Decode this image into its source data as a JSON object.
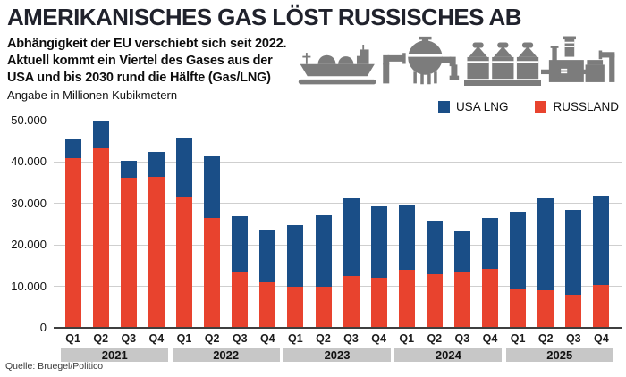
{
  "header": {
    "title": "AMERIKANISCHES GAS LÖST RUSSISCHES AB",
    "subtitle_lines": [
      "Abhängigkeit der EU verschiebt sich seit 2022.",
      "Aktuell kommt ein Viertel des Gases aus der",
      "USA und bis 2030 rund die Hälfte (Gas/LNG)"
    ],
    "unit_note": "Angabe in Millionen Kubikmetern",
    "icons": [
      "lng-tanker-ship",
      "spherical-gas-tank",
      "storage-tanks",
      "gas-plant"
    ]
  },
  "legend": [
    {
      "label": "USA LNG",
      "color": "#1a4e87"
    },
    {
      "label": "RUSSLAND",
      "color": "#e8432e"
    }
  ],
  "source": "Quelle: Bruegel/Politico",
  "colors": {
    "background": "#ffffff",
    "title": "#20222c",
    "usa_blue": "#1a4e87",
    "russia_red": "#e8432e",
    "grid": "#cfcfcf",
    "axis": "#3f3f3f",
    "year_band_bg": "#c7c7c7",
    "icon_gray": "#7c7c7c"
  },
  "chart_data": {
    "type": "bar",
    "stacked": true,
    "title": "AMERIKANISCHES GAS LÖST RUSSISCHES AB",
    "ylabel": "Angabe in Millionen Kubikmetern",
    "xlabel": "",
    "unit": "Millionen Kubikmeter",
    "grid": true,
    "legend_position": "top-right",
    "ylim": [
      0,
      50000
    ],
    "ytick_values": [
      0,
      10000,
      20000,
      30000,
      40000,
      50000
    ],
    "ytick_labels": [
      "0",
      "10.000",
      "20.000",
      "30.000",
      "40.000",
      "50.000"
    ],
    "years": [
      "2021",
      "2022",
      "2023",
      "2024",
      "2025"
    ],
    "categories": [
      "Q1",
      "Q2",
      "Q3",
      "Q4",
      "Q1",
      "Q2",
      "Q3",
      "Q4",
      "Q1",
      "Q2",
      "Q3",
      "Q4",
      "Q1",
      "Q2",
      "Q3",
      "Q4",
      "Q1",
      "Q2",
      "Q3",
      "Q4"
    ],
    "series": [
      {
        "name": "RUSSLAND",
        "color": "#e8432e",
        "values": [
          41000,
          43300,
          36200,
          36400,
          31600,
          26600,
          13600,
          11000,
          10000,
          10000,
          12400,
          12000,
          14000,
          13000,
          13500,
          14200,
          9500,
          9000,
          8000,
          10300
        ]
      },
      {
        "name": "USA LNG",
        "color": "#1a4e87",
        "values": [
          4500,
          6700,
          4100,
          6000,
          14100,
          14700,
          13400,
          12800,
          14700,
          17100,
          18900,
          17300,
          15700,
          12800,
          9700,
          12300,
          18600,
          22300,
          20400,
          21500
        ]
      }
    ]
  }
}
